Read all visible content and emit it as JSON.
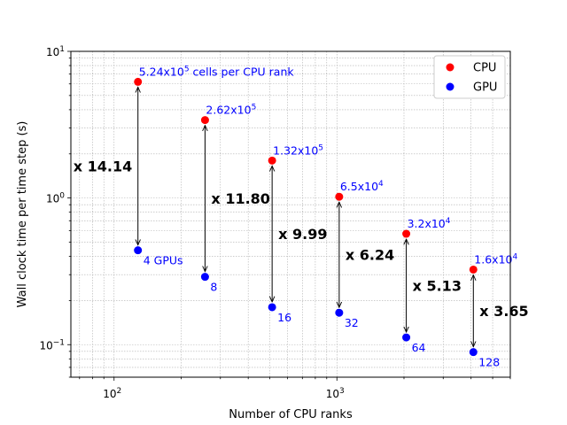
{
  "chart_data": {
    "type": "scatter",
    "xlabel": "Number of CPU ranks",
    "ylabel": "Wall clock time per time step (s)",
    "xscale": "log",
    "yscale": "log",
    "xlim": [
      64,
      6000
    ],
    "ylim": [
      0.06,
      10
    ],
    "grid": true,
    "legend_position": "top-right",
    "x_ticks": [
      {
        "value": 100,
        "base": "10",
        "exp": "2"
      },
      {
        "value": 1000,
        "base": "10",
        "exp": "3"
      }
    ],
    "y_ticks": [
      {
        "value": 0.1,
        "base": "10",
        "exp": "−1"
      },
      {
        "value": 1,
        "base": "10",
        "exp": "0"
      },
      {
        "value": 10,
        "base": "10",
        "exp": "1"
      }
    ],
    "series": [
      {
        "name": "CPU",
        "color": "#ff0000",
        "points": [
          {
            "x": 128,
            "y": 6.2
          },
          {
            "x": 256,
            "y": 3.4
          },
          {
            "x": 512,
            "y": 1.8
          },
          {
            "x": 1024,
            "y": 1.02
          },
          {
            "x": 2048,
            "y": 0.57
          },
          {
            "x": 4096,
            "y": 0.325
          }
        ]
      },
      {
        "name": "GPU",
        "color": "#0000ff",
        "points": [
          {
            "x": 128,
            "y": 0.44
          },
          {
            "x": 256,
            "y": 0.29
          },
          {
            "x": 512,
            "y": 0.18
          },
          {
            "x": 1024,
            "y": 0.165
          },
          {
            "x": 2048,
            "y": 0.112
          },
          {
            "x": 4096,
            "y": 0.089
          }
        ]
      }
    ],
    "cpu_labels": [
      {
        "base": "5.24x10",
        "exp": "5",
        "suffix": " cells per CPU rank"
      },
      {
        "base": "2.62x10",
        "exp": "5",
        "suffix": ""
      },
      {
        "base": "1.32x10",
        "exp": "5",
        "suffix": ""
      },
      {
        "base": "6.5x10",
        "exp": "4",
        "suffix": ""
      },
      {
        "base": "3.2x10",
        "exp": "4",
        "suffix": ""
      },
      {
        "base": "1.6x10",
        "exp": "4",
        "suffix": ""
      }
    ],
    "gpu_labels": [
      "4 GPUs",
      "8",
      "16",
      "32",
      "64",
      "128"
    ],
    "speedup_labels": [
      "x 14.14",
      "x 11.80",
      "x 9.99",
      "x 6.24",
      "x 5.13",
      "x 3.65"
    ],
    "label_color": "#0000ff"
  }
}
